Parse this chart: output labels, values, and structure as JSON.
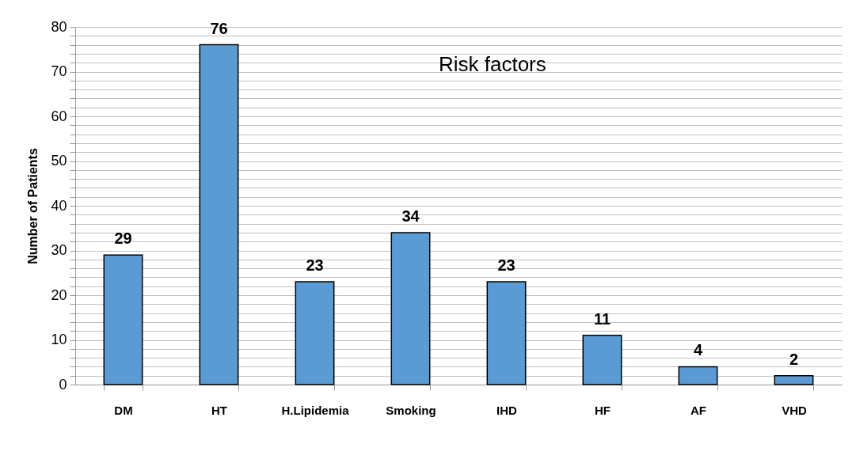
{
  "chart_data": {
    "type": "bar",
    "title": "Risk factors",
    "ylabel": "Number of Patients",
    "categories": [
      "DM",
      "HT",
      "H.Lipidemia",
      "Smoking",
      "IHD",
      "HF",
      "AF",
      "VHD"
    ],
    "values": [
      29,
      76,
      23,
      34,
      23,
      11,
      4,
      2
    ],
    "color": "#5b9bd5",
    "ylim": [
      0,
      80
    ],
    "yticks": [
      0,
      {
        "value": 2,
        "label": null
      },
      {
        "value": 4,
        "label": null
      },
      {
        "value": 6,
        "label": null
      },
      {
        "value": 8,
        "label": null
      },
      10,
      {
        "value": 12,
        "label": null
      },
      {
        "value": 14,
        "label": null
      },
      {
        "value": 16,
        "label": null
      },
      {
        "value": 18,
        "label": null
      },
      20,
      {
        "value": 22,
        "label": null
      },
      {
        "value": 24,
        "label": null
      },
      {
        "value": 26,
        "label": null
      },
      {
        "value": 28,
        "label": null
      },
      30,
      {
        "value": 32,
        "label": null
      },
      {
        "value": 34,
        "label": null
      },
      {
        "value": 36,
        "label": null
      },
      {
        "value": 38,
        "label": null
      },
      40,
      {
        "value": 42,
        "label": null
      },
      {
        "value": 44,
        "label": null
      },
      {
        "value": 46,
        "label": null
      },
      {
        "value": 48,
        "label": null
      },
      50,
      {
        "value": 52,
        "label": null
      },
      {
        "value": 54,
        "label": null
      },
      {
        "value": 56,
        "label": null
      },
      {
        "value": 58,
        "label": null
      },
      60,
      {
        "value": 62,
        "label": null
      },
      {
        "value": 64,
        "label": null
      },
      {
        "value": 66,
        "label": null
      },
      {
        "value": 68,
        "label": null
      },
      70,
      {
        "value": 72,
        "label": null
      },
      {
        "value": 74,
        "label": null
      },
      {
        "value": 76,
        "label": null
      },
      {
        "value": 78,
        "label": null
      },
      80
    ],
    "grid": "y",
    "data_labels": true
  }
}
